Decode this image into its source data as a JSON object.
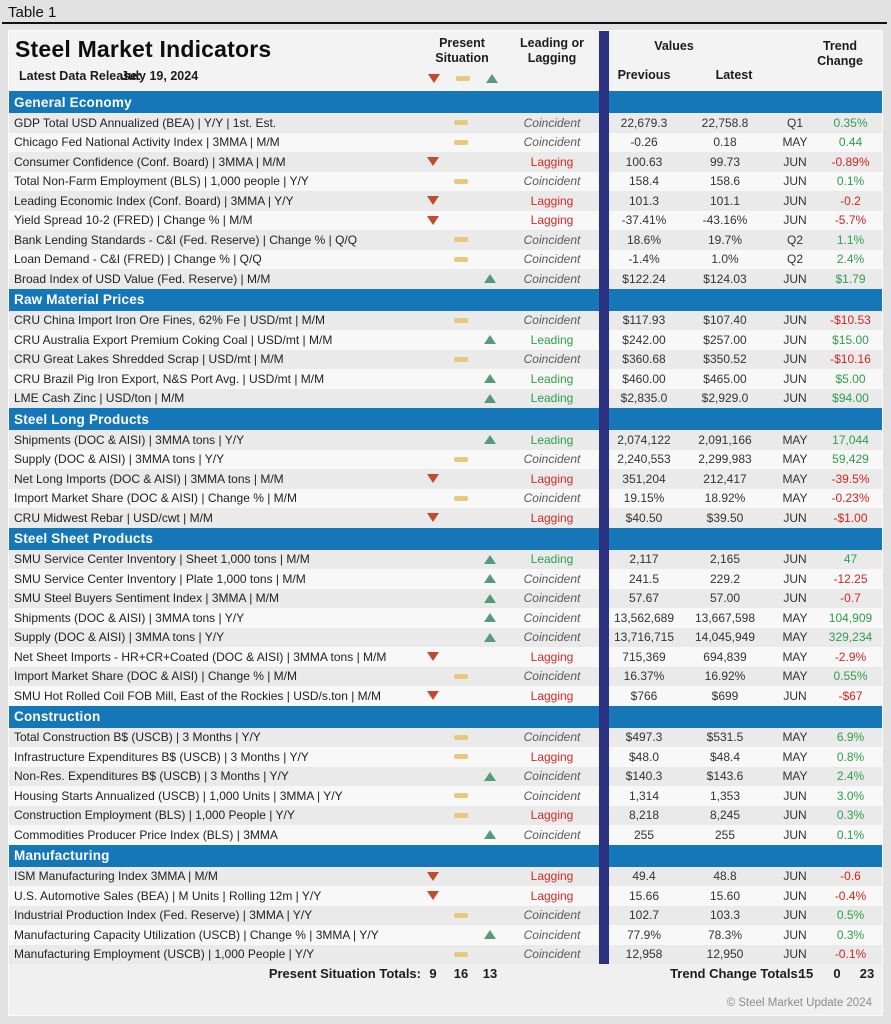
{
  "page_label": "Table 1",
  "header": {
    "title": "Steel Market Indicators",
    "latest_data_release_label": "Latest Data Release:",
    "latest_data_release_date": "July 19, 2024",
    "col_present_situation": "Present Situation",
    "col_leading_or_lagging": "Leading or Lagging",
    "col_values": "Values",
    "col_previous": "Previous",
    "col_latest": "Latest",
    "col_trend_change": "Trend Change"
  },
  "colors": {
    "section_header_bg": "#1577b7",
    "divider_navy": "#2b3080",
    "down_red": "#c14b2e",
    "neutral_tan": "#e9c77c",
    "up_green": "#579a7f",
    "lagging_red": "#d32b25",
    "leading_green": "#2f9e4a",
    "coincident_gray": "#5a5a5a",
    "trend_up_green": "#2f9e4a",
    "trend_down_red": "#d3251f"
  },
  "sections": [
    {
      "title": "General Economy",
      "rows": [
        {
          "name": "GDP Total USD Annualized (BEA) | Y/Y | 1st. Est.",
          "situation": "neutral",
          "classification": "Coincident",
          "previous": "22,679.3",
          "latest": "22,758.8",
          "period": "Q1",
          "trend": "0.35%",
          "trend_dir": "up"
        },
        {
          "name": "Chicago Fed National Activity Index | 3MMA | M/M",
          "situation": "neutral",
          "classification": "Coincident",
          "previous": "-0.26",
          "latest": "0.18",
          "period": "MAY",
          "trend": "0.44",
          "trend_dir": "up"
        },
        {
          "name": "Consumer Confidence (Conf. Board) | 3MMA | M/M",
          "situation": "down",
          "classification": "Lagging",
          "previous": "100.63",
          "latest": "99.73",
          "period": "JUN",
          "trend": "-0.89%",
          "trend_dir": "down"
        },
        {
          "name": "Total Non-Farm Employment (BLS) | 1,000 people | Y/Y",
          "situation": "neutral",
          "classification": "Coincident",
          "previous": "158.4",
          "latest": "158.6",
          "period": "JUN",
          "trend": "0.1%",
          "trend_dir": "up"
        },
        {
          "name": "Leading Economic Index (Conf. Board) | 3MMA | Y/Y",
          "situation": "down",
          "classification": "Lagging",
          "previous": "101.3",
          "latest": "101.1",
          "period": "JUN",
          "trend": "-0.2",
          "trend_dir": "down"
        },
        {
          "name": "Yield Spread 10-2 (FRED) | Change % | M/M",
          "situation": "down",
          "classification": "Lagging",
          "previous": "-37.41%",
          "latest": "-43.16%",
          "period": "JUN",
          "trend": "-5.7%",
          "trend_dir": "down"
        },
        {
          "name": "Bank Lending Standards - C&I (Fed. Reserve) | Change % | Q/Q",
          "situation": "neutral",
          "classification": "Coincident",
          "previous": "18.6%",
          "latest": "19.7%",
          "period": "Q2",
          "trend": "1.1%",
          "trend_dir": "up"
        },
        {
          "name": "Loan Demand - C&I (FRED) | Change % | Q/Q",
          "situation": "neutral",
          "classification": "Coincident",
          "previous": "-1.4%",
          "latest": "1.0%",
          "period": "Q2",
          "trend": "2.4%",
          "trend_dir": "up"
        },
        {
          "name": "Broad Index of USD Value (Fed. Reserve) | M/M",
          "situation": "up",
          "classification": "Coincident",
          "previous": "$122.24",
          "latest": "$124.03",
          "period": "JUN",
          "trend": "$1.79",
          "trend_dir": "up"
        }
      ]
    },
    {
      "title": "Raw Material Prices",
      "rows": [
        {
          "name": "CRU China Import Iron Ore Fines, 62% Fe | USD/mt | M/M",
          "situation": "neutral",
          "classification": "Coincident",
          "previous": "$117.93",
          "latest": "$107.40",
          "period": "JUN",
          "trend": "-$10.53",
          "trend_dir": "down"
        },
        {
          "name": "CRU Australia Export Premium Coking Coal | USD/mt | M/M",
          "situation": "up",
          "classification": "Leading",
          "previous": "$242.00",
          "latest": "$257.00",
          "period": "JUN",
          "trend": "$15.00",
          "trend_dir": "up"
        },
        {
          "name": "CRU Great Lakes Shredded Scrap | USD/mt | M/M",
          "situation": "neutral",
          "classification": "Coincident",
          "previous": "$360.68",
          "latest": "$350.52",
          "period": "JUN",
          "trend": "-$10.16",
          "trend_dir": "down"
        },
        {
          "name": "CRU Brazil Pig Iron Export, N&S Port Avg. | USD/mt | M/M",
          "situation": "up",
          "classification": "Leading",
          "previous": "$460.00",
          "latest": "$465.00",
          "period": "JUN",
          "trend": "$5.00",
          "trend_dir": "up"
        },
        {
          "name": "LME Cash Zinc | USD/ton | M/M",
          "situation": "up",
          "classification": "Leading",
          "previous": "$2,835.0",
          "latest": "$2,929.0",
          "period": "JUN",
          "trend": "$94.00",
          "trend_dir": "up"
        }
      ]
    },
    {
      "title": "Steel Long Products",
      "rows": [
        {
          "name": "Shipments (DOC & AISI) | 3MMA tons | Y/Y",
          "situation": "up",
          "classification": "Leading",
          "previous": "2,074,122",
          "latest": "2,091,166",
          "period": "MAY",
          "trend": "17,044",
          "trend_dir": "up"
        },
        {
          "name": "Supply (DOC & AISI) | 3MMA tons | Y/Y",
          "situation": "neutral",
          "classification": "Coincident",
          "previous": "2,240,553",
          "latest": "2,299,983",
          "period": "MAY",
          "trend": "59,429",
          "trend_dir": "up"
        },
        {
          "name": "Net Long Imports (DOC & AISI) | 3MMA tons | M/M",
          "situation": "down",
          "classification": "Lagging",
          "previous": "351,204",
          "latest": "212,417",
          "period": "MAY",
          "trend": "-39.5%",
          "trend_dir": "down"
        },
        {
          "name": "Import Market Share (DOC & AISI) | Change % | M/M",
          "situation": "neutral",
          "classification": "Coincident",
          "previous": "19.15%",
          "latest": "18.92%",
          "period": "MAY",
          "trend": "-0.23%",
          "trend_dir": "down"
        },
        {
          "name": "CRU Midwest Rebar | USD/cwt | M/M",
          "situation": "down",
          "classification": "Lagging",
          "previous": "$40.50",
          "latest": "$39.50",
          "period": "JUN",
          "trend": "-$1.00",
          "trend_dir": "down"
        }
      ]
    },
    {
      "title": "Steel Sheet Products",
      "rows": [
        {
          "name": "SMU Service Center Inventory | Sheet 1,000 tons | M/M",
          "situation": "up",
          "classification": "Leading",
          "previous": "2,117",
          "latest": "2,165",
          "period": "JUN",
          "trend": "47",
          "trend_dir": "up"
        },
        {
          "name": "SMU Service Center Inventory | Plate 1,000 tons | M/M",
          "situation": "up",
          "classification": "Coincident",
          "previous": "241.5",
          "latest": "229.2",
          "period": "JUN",
          "trend": "-12.25",
          "trend_dir": "down"
        },
        {
          "name": "SMU Steel Buyers Sentiment Index | 3MMA | M/M",
          "situation": "up",
          "classification": "Coincident",
          "previous": "57.67",
          "latest": "57.00",
          "period": "JUN",
          "trend": "-0.7",
          "trend_dir": "down"
        },
        {
          "name": "Shipments (DOC & AISI) | 3MMA tons | Y/Y",
          "situation": "up",
          "classification": "Coincident",
          "previous": "13,562,689",
          "latest": "13,667,598",
          "period": "MAY",
          "trend": "104,909",
          "trend_dir": "up"
        },
        {
          "name": "Supply (DOC & AISI) | 3MMA tons | Y/Y",
          "situation": "up",
          "classification": "Coincident",
          "previous": "13,716,715",
          "latest": "14,045,949",
          "period": "MAY",
          "trend": "329,234",
          "trend_dir": "up"
        },
        {
          "name": "Net Sheet Imports - HR+CR+Coated (DOC & AISI) | 3MMA tons | M/M",
          "situation": "down",
          "classification": "Lagging",
          "previous": "715,369",
          "latest": "694,839",
          "period": "MAY",
          "trend": "-2.9%",
          "trend_dir": "down"
        },
        {
          "name": "Import Market Share (DOC & AISI) | Change % | M/M",
          "situation": "neutral",
          "classification": "Coincident",
          "previous": "16.37%",
          "latest": "16.92%",
          "period": "MAY",
          "trend": "0.55%",
          "trend_dir": "up"
        },
        {
          "name": "SMU Hot Rolled Coil FOB Mill, East of the Rockies | USD/s.ton | M/M",
          "situation": "down",
          "classification": "Lagging",
          "previous": "$766",
          "latest": "$699",
          "period": "JUN",
          "trend": "-$67",
          "trend_dir": "down"
        }
      ]
    },
    {
      "title": "Construction",
      "rows": [
        {
          "name": "Total Construction B$ (USCB) | 3 Months | Y/Y",
          "situation": "neutral",
          "classification": "Coincident",
          "previous": "$497.3",
          "latest": "$531.5",
          "period": "MAY",
          "trend": "6.9%",
          "trend_dir": "up"
        },
        {
          "name": "Infrastructure Expenditures B$ (USCB) | 3 Months | Y/Y",
          "situation": "neutral",
          "classification": "Lagging",
          "previous": "$48.0",
          "latest": "$48.4",
          "period": "MAY",
          "trend": "0.8%",
          "trend_dir": "up"
        },
        {
          "name": "Non-Res. Expenditures B$ (USCB) | 3 Months | Y/Y",
          "situation": "up",
          "classification": "Coincident",
          "previous": "$140.3",
          "latest": "$143.6",
          "period": "MAY",
          "trend": "2.4%",
          "trend_dir": "up"
        },
        {
          "name": "Housing Starts Annualized (USCB) | 1,000 Units | 3MMA | Y/Y",
          "situation": "neutral",
          "classification": "Coincident",
          "previous": "1,314",
          "latest": "1,353",
          "period": "JUN",
          "trend": "3.0%",
          "trend_dir": "up"
        },
        {
          "name": "Construction Employment (BLS) | 1,000 People | Y/Y",
          "situation": "neutral",
          "classification": "Lagging",
          "previous": "8,218",
          "latest": "8,245",
          "period": "JUN",
          "trend": "0.3%",
          "trend_dir": "up"
        },
        {
          "name": "Commodities Producer Price Index (BLS) | 3MMA",
          "situation": "up",
          "classification": "Coincident",
          "previous": "255",
          "latest": "255",
          "period": "JUN",
          "trend": "0.1%",
          "trend_dir": "up"
        }
      ]
    },
    {
      "title": "Manufacturing",
      "rows": [
        {
          "name": "ISM Manufacturing Index 3MMA | M/M",
          "situation": "down",
          "classification": "Lagging",
          "previous": "49.4",
          "latest": "48.8",
          "period": "JUN",
          "trend": "-0.6",
          "trend_dir": "down"
        },
        {
          "name": "U.S. Automotive Sales (BEA) | M Units | Rolling 12m | Y/Y",
          "situation": "down",
          "classification": "Lagging",
          "previous": "15.66",
          "latest": "15.60",
          "period": "JUN",
          "trend": "-0.4%",
          "trend_dir": "down"
        },
        {
          "name": "Industrial Production Index (Fed. Reserve) | 3MMA | Y/Y",
          "situation": "neutral",
          "classification": "Coincident",
          "previous": "102.7",
          "latest": "103.3",
          "period": "JUN",
          "trend": "0.5%",
          "trend_dir": "up"
        },
        {
          "name": "Manufacturing Capacity Utilization (USCB) | Change % | 3MMA | Y/Y",
          "situation": "up",
          "classification": "Coincident",
          "previous": "77.9%",
          "latest": "78.3%",
          "period": "JUN",
          "trend": "0.3%",
          "trend_dir": "up"
        },
        {
          "name": "Manufacturing Employment (USCB) | 1,000 People | Y/Y",
          "situation": "neutral",
          "classification": "Coincident",
          "previous": "12,958",
          "latest": "12,950",
          "period": "JUN",
          "trend": "-0.1%",
          "trend_dir": "down"
        }
      ]
    }
  ],
  "footer": {
    "present_situation_totals_label": "Present Situation Totals:",
    "present_situation_totals": [
      "9",
      "16",
      "13"
    ],
    "trend_change_totals_label": "Trend Change Totals:",
    "trend_change_totals": [
      "15",
      "0",
      "23"
    ],
    "copyright": "© Steel Market Update 2024"
  }
}
